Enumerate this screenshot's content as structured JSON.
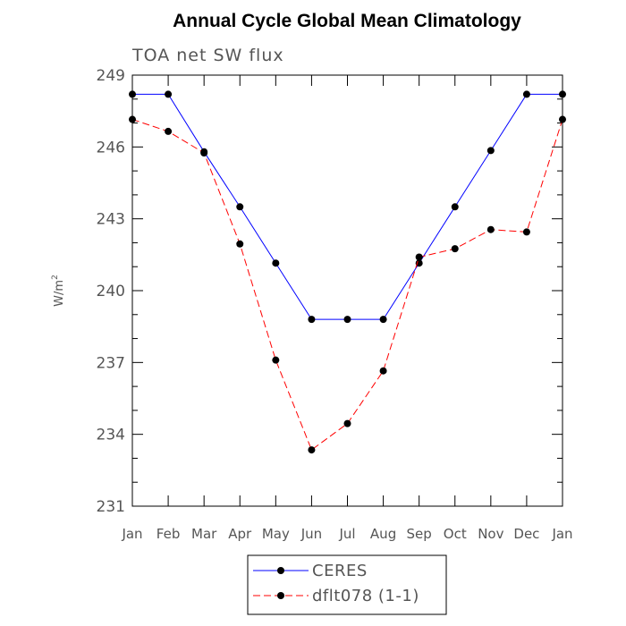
{
  "chart_data": {
    "type": "line",
    "title": "Annual Cycle Global Mean Climatology",
    "subtitle": "TOA net SW flux",
    "ylabel": "W/m",
    "ylabel_superscript": "2",
    "xlabel": "",
    "ylim": [
      231,
      249
    ],
    "yticks": [
      231,
      234,
      237,
      240,
      243,
      246,
      249
    ],
    "categories": [
      "Jan",
      "Feb",
      "Mar",
      "Apr",
      "May",
      "Jun",
      "Jul",
      "Aug",
      "Sep",
      "Oct",
      "Nov",
      "Dec",
      "Jan"
    ],
    "series": [
      {
        "name": "CERES",
        "color": "#0000ff",
        "dash": "solid",
        "values": [
          248.2,
          248.2,
          245.8,
          243.5,
          241.15,
          238.8,
          238.8,
          238.8,
          241.15,
          243.5,
          245.85,
          248.2,
          248.2
        ]
      },
      {
        "name": "dflt078 (1-1)",
        "color": "#ff0000",
        "dash": "dashed",
        "values": [
          247.15,
          246.65,
          245.75,
          241.95,
          237.1,
          233.35,
          234.45,
          236.65,
          241.4,
          241.75,
          242.55,
          242.45,
          247.15
        ]
      }
    ],
    "legend_position": "bottom-center",
    "marker_color": "#000000"
  }
}
